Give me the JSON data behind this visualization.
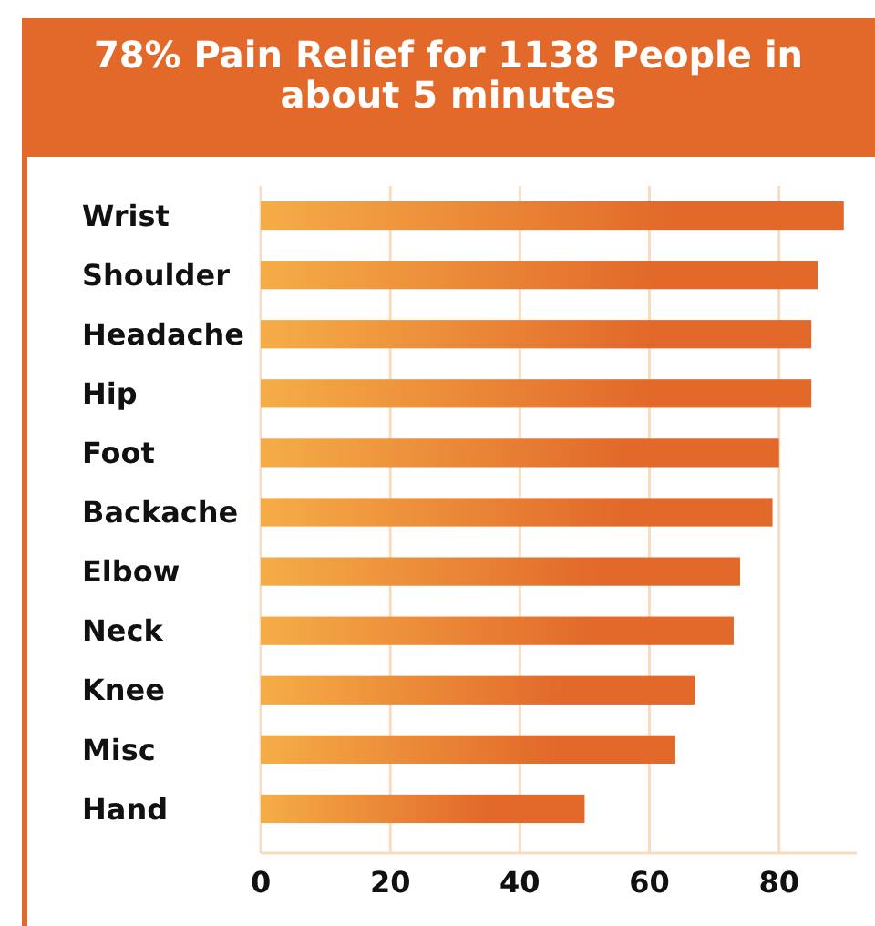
{
  "chart_data": {
    "type": "bar",
    "orientation": "horizontal",
    "title": "78% Pain Relief for 1138 People in about 5 minutes",
    "categories": [
      "Wrist",
      "Shoulder",
      "Headache",
      "Hip",
      "Foot",
      "Backache",
      "Elbow",
      "Neck",
      "Knee",
      "Misc",
      "Hand"
    ],
    "values": [
      90,
      86,
      85,
      85,
      80,
      79,
      74,
      73,
      67,
      64,
      50
    ],
    "color": "#e2692a",
    "xlim": [
      0,
      92
    ],
    "xticks": [
      0,
      20,
      40,
      60,
      80
    ],
    "grid": "x"
  }
}
